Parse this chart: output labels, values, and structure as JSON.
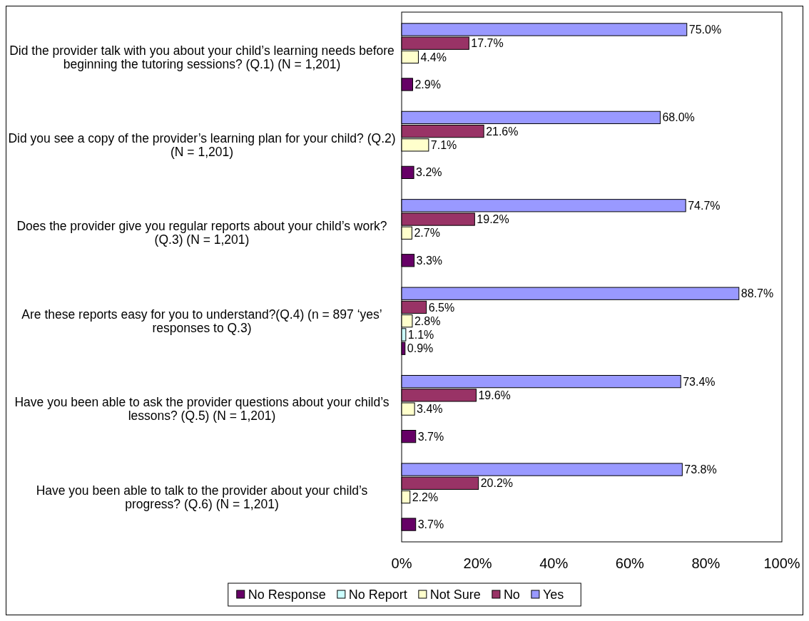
{
  "chart_data": {
    "type": "bar",
    "orientation": "horizontal",
    "categories": [
      "Did the provider talk with you about your child’s learning needs before beginning the tutoring sessions? (Q.1) (N = 1,201)",
      "Did you see a copy of the provider’s learning plan for your child? (Q.2) (N = 1,201)",
      "Does the provider give you regular reports about your child’s work? (Q.3) (N = 1,201)",
      "Are these reports easy for you to understand?(Q.4) (n = 897 ‘yes’ responses to Q.3)",
      "Have you been able to ask the provider questions about your child’s lessons? (Q.5) (N = 1,201)",
      "Have you been able to talk to the provider about your child’s progress? (Q.6) (N = 1,201)"
    ],
    "series": [
      {
        "name": "No Response",
        "color": "#660066",
        "values": [
          2.9,
          3.2,
          3.3,
          0.9,
          3.7,
          3.7
        ],
        "value_labels": [
          "2.9%",
          "3.2%",
          "3.3%",
          "0.9%",
          "3.7%",
          "3.7%"
        ]
      },
      {
        "name": "No Report",
        "color": "#ccffff",
        "values": [
          null,
          null,
          null,
          1.1,
          null,
          null
        ],
        "value_labels": [
          null,
          null,
          null,
          "1.1%",
          null,
          null
        ]
      },
      {
        "name": "Not Sure",
        "color": "#ffffcc",
        "values": [
          4.4,
          7.1,
          2.7,
          2.8,
          3.4,
          2.2
        ],
        "value_labels": [
          "4.4%",
          "7.1%",
          "2.7%",
          "2.8%",
          "3.4%",
          "2.2%"
        ]
      },
      {
        "name": "No",
        "color": "#993366",
        "values": [
          17.7,
          21.6,
          19.2,
          6.5,
          19.6,
          20.2
        ],
        "value_labels": [
          "17.7%",
          "21.6%",
          "19.2%",
          "6.5%",
          "19.6%",
          "20.2%"
        ]
      },
      {
        "name": "Yes",
        "color": "#9999ff",
        "values": [
          75.0,
          68.0,
          74.7,
          88.7,
          73.4,
          73.8
        ],
        "value_labels": [
          "75.0%",
          "68.0%",
          "74.7%",
          "88.7%",
          "73.4%",
          "73.8%"
        ]
      }
    ],
    "xlim": [
      0,
      100
    ],
    "xticks": [
      {
        "value": 0,
        "label": "0%"
      },
      {
        "value": 20,
        "label": "20%"
      },
      {
        "value": 40,
        "label": "40%"
      },
      {
        "value": 60,
        "label": "60%"
      },
      {
        "value": 80,
        "label": "80%"
      },
      {
        "value": 100,
        "label": "100%"
      }
    ],
    "grid": false,
    "legend": "bottom"
  }
}
